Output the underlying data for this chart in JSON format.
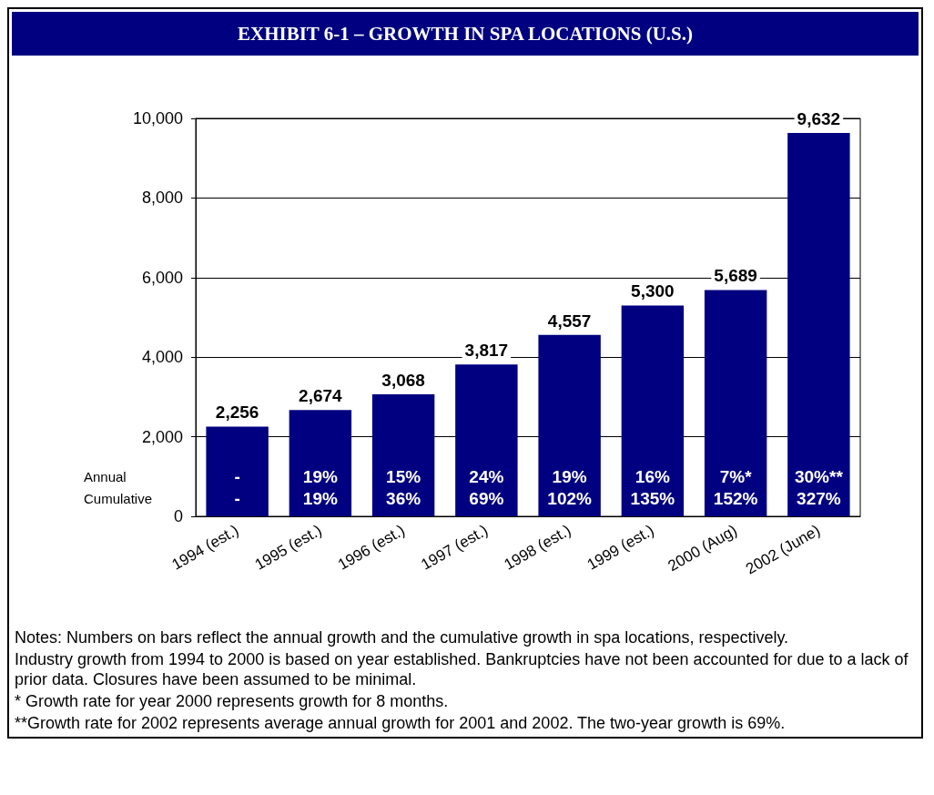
{
  "chart_data": {
    "type": "bar",
    "title": "EXHIBIT 6-1 – GROWTH IN SPA LOCATIONS (U.S.)",
    "categories": [
      "1994 (est.)",
      "1995 (est.)",
      "1996 (est.)",
      "1997 (est.)",
      "1998 (est.)",
      "1999 (est.)",
      "2000 (Aug)",
      "2002 (June)"
    ],
    "values": [
      2256,
      2674,
      3068,
      3817,
      4557,
      5300,
      5689,
      9632
    ],
    "value_labels": [
      "2,256",
      "2,674",
      "3,068",
      "3,817",
      "4,557",
      "5,300",
      "5,689",
      "9,632"
    ],
    "color": "#000080",
    "ylim": [
      0,
      10000
    ],
    "yticks": [
      0,
      {
        "value": 2000,
        "label": "2,000"
      },
      {
        "value": 4000,
        "label": "4,000"
      },
      {
        "value": 6000,
        "label": "6,000"
      },
      {
        "value": 8000,
        "label": "8,000"
      },
      {
        "value": 10000,
        "label": "10,000"
      }
    ],
    "grid": "y",
    "annotations": [
      "Annual",
      "Cumulative",
      {
        "text": "-",
        "x": "1994 (est.)",
        "y": 1000
      },
      {
        "text": "19%",
        "x": "1995 (est.)",
        "y": 1000
      },
      {
        "text": "15%",
        "x": "1996 (est.)",
        "y": 1000
      },
      {
        "text": "24%",
        "x": "1997 (est.)",
        "y": 1000
      },
      {
        "text": "19%",
        "x": "1998 (est.)",
        "y": 1000
      },
      {
        "text": "16%",
        "x": "1999 (est.)",
        "y": 1000
      },
      {
        "text": "7%*",
        "x": "2000 (Aug)",
        "y": 1000
      },
      {
        "text": "30%**",
        "x": "2002 (June)",
        "y": 1000
      },
      {
        "text": "-",
        "x": "1994 (est.)",
        "y": 450
      },
      {
        "text": "19%",
        "x": "1995 (est.)",
        "y": 450
      },
      {
        "text": "36%",
        "x": "1996 (est.)",
        "y": 450
      },
      {
        "text": "69%",
        "x": "1997 (est.)",
        "y": 450
      },
      {
        "text": "102%",
        "x": "1998 (est.)",
        "y": 450
      },
      {
        "text": "135%",
        "x": "1999 (est.)",
        "y": 450
      },
      {
        "text": "152%",
        "x": "2000 (Aug)",
        "y": 450
      },
      {
        "text": "327%",
        "x": "2002 (June)",
        "y": 450
      },
      "Notes: Numbers on bars reflect the annual growth and the cumulative growth in spa locations, respectively.",
      "Industry growth from 1994 to 2000 is based on year established.  Bankruptcies have not been accounted for due to a lack of prior data.  Closures have been assumed to be minimal.",
      "* Growth rate for year 2000 represents growth for 8 months.",
      "**Growth rate for 2002 represents average annual growth for 2001 and 2002.  The two-year growth is 69%."
    ]
  }
}
